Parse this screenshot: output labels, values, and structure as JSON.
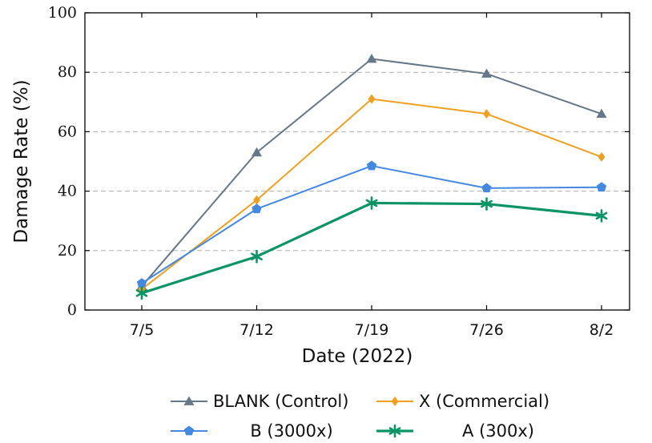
{
  "chart_data": {
    "type": "line",
    "title": "",
    "xlabel": "Date (2022)",
    "ylabel": "Damage Rate (%)",
    "categories": [
      "7/5",
      "7/12",
      "7/19",
      "7/26",
      "8/2"
    ],
    "ylim": [
      0,
      100
    ],
    "yticks": [
      "0",
      "20",
      "40",
      "60",
      "80",
      "100"
    ],
    "grid": "horizontal dashed",
    "legend_position": "bottom",
    "series": [
      {
        "name": "BLANK (Control)",
        "color": "#667788",
        "marker": "triangle",
        "values": [
          8,
          53,
          84.5,
          79.5,
          66
        ]
      },
      {
        "name": "X (Commercial)",
        "color": "#f0a020",
        "marker": "diamond",
        "values": [
          7,
          37,
          71,
          66,
          51.5
        ]
      },
      {
        "name": "B (3000x)",
        "color": "#4488e0",
        "marker": "pentagon",
        "values": [
          9,
          34,
          48.5,
          41,
          41.3
        ]
      },
      {
        "name": "A (300x)",
        "color": "#0d9466",
        "marker": "star",
        "values": [
          5.7,
          18,
          36,
          35.7,
          31.7
        ]
      }
    ]
  }
}
